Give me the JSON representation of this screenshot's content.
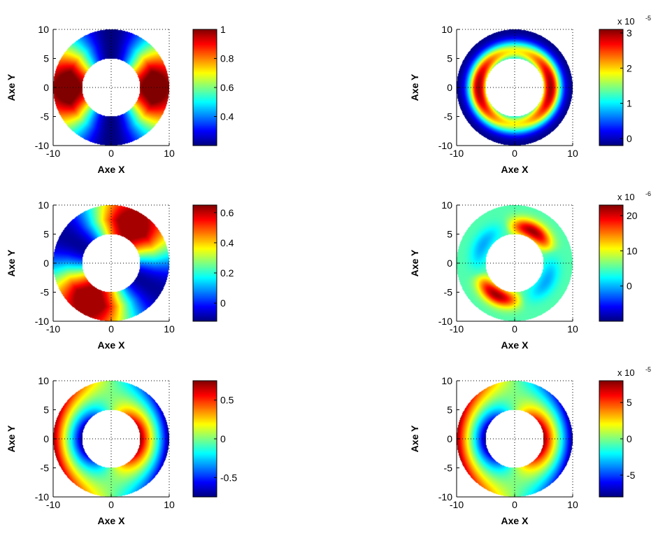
{
  "colormap": "jet",
  "chart_data": [
    {
      "type": "heatmap",
      "xlabel": "Axe X",
      "ylabel": "Axe Y",
      "xlim": [
        -10,
        10
      ],
      "ylim": [
        -10,
        10
      ],
      "xticks": [
        "-10",
        "0",
        "10"
      ],
      "yticks": [
        "10",
        "5",
        "0",
        "-5",
        "-10"
      ],
      "shape": "annulus",
      "inner_radius": 5,
      "outer_radius": 10,
      "colorbar": {
        "min": 0.2,
        "max": 1.0,
        "ticks": [
          "1",
          "0.8",
          "0.6",
          "0.4"
        ],
        "tick_values": [
          1,
          0.8,
          0.6,
          0.4
        ],
        "multiplier": ""
      },
      "field": {
        "kind": "cos2",
        "low": 0.2,
        "high": 1.0,
        "peak_angle_deg": 0,
        "radial_weight": 0.3
      }
    },
    {
      "type": "heatmap",
      "xlabel": "Axe X",
      "ylabel": "Axe Y",
      "xlim": [
        -10,
        10
      ],
      "ylim": [
        -10,
        10
      ],
      "xticks": [
        "-10",
        "0",
        "10"
      ],
      "yticks": [
        "10",
        "5",
        "0",
        "-5",
        "-10"
      ],
      "shape": "annulus",
      "inner_radius": 5,
      "outer_radius": 10,
      "colorbar": {
        "min": -0.2,
        "max": 3.1,
        "ticks": [
          "3",
          "2",
          "1",
          "0"
        ],
        "tick_values": [
          3,
          2,
          1,
          0
        ],
        "multiplier": "x 10",
        "multiplier_exp": "-5"
      },
      "field": {
        "kind": "ring",
        "low": -0.2,
        "high": 3.0,
        "peak_radius": 6.2,
        "ang_amp": 0.35
      }
    },
    {
      "type": "heatmap",
      "xlabel": "Axe X",
      "ylabel": "Axe Y",
      "xlim": [
        -10,
        10
      ],
      "ylim": [
        -10,
        10
      ],
      "xticks": [
        "-10",
        "0",
        "10"
      ],
      "yticks": [
        "10",
        "5",
        "0",
        "-5",
        "-10"
      ],
      "shape": "annulus",
      "inner_radius": 5,
      "outer_radius": 10,
      "colorbar": {
        "min": -0.12,
        "max": 0.65,
        "ticks": [
          "0.6",
          "0.4",
          "0.2",
          "0"
        ],
        "tick_values": [
          0.6,
          0.4,
          0.2,
          0
        ],
        "multiplier": ""
      },
      "field": {
        "kind": "cos2",
        "low": -0.1,
        "high": 0.62,
        "peak_angle_deg": -120,
        "radial_weight": 0.25
      }
    },
    {
      "type": "heatmap",
      "xlabel": "Axe X",
      "ylabel": "Axe Y",
      "xlim": [
        -10,
        10
      ],
      "ylim": [
        -10,
        10
      ],
      "xticks": [
        "-10",
        "0",
        "10"
      ],
      "yticks": [
        "10",
        "5",
        "0",
        "-5",
        "-10"
      ],
      "shape": "annulus",
      "inner_radius": 5,
      "outer_radius": 10,
      "colorbar": {
        "min": -10,
        "max": 23,
        "ticks": [
          "20",
          "10",
          "0"
        ],
        "tick_values": [
          20,
          10,
          0
        ],
        "multiplier": "x 10",
        "multiplier_exp": "-6"
      },
      "field": {
        "kind": "ringcos",
        "low": -4,
        "high": 22,
        "base": 5,
        "peak_radius": 6.3,
        "peak_angle_deg": -120
      }
    },
    {
      "type": "heatmap",
      "xlabel": "Axe X",
      "ylabel": "Axe Y",
      "xlim": [
        -10,
        10
      ],
      "ylim": [
        -10,
        10
      ],
      "xticks": [
        "-10",
        "0",
        "10"
      ],
      "yticks": [
        "10",
        "5",
        "0",
        "-5",
        "-10"
      ],
      "shape": "annulus",
      "inner_radius": 5,
      "outer_radius": 10,
      "colorbar": {
        "min": -0.75,
        "max": 0.75,
        "ticks": [
          "0.5",
          "0",
          "-0.5"
        ],
        "tick_values": [
          0.5,
          0,
          -0.5
        ],
        "multiplier": ""
      },
      "field": {
        "kind": "gradient",
        "low": -0.7,
        "high": 0.7,
        "dir_deg": 0,
        "phase_sign": 1
      }
    },
    {
      "type": "heatmap",
      "xlabel": "Axe X",
      "ylabel": "Axe Y",
      "xlim": [
        -10,
        10
      ],
      "ylim": [
        -10,
        10
      ],
      "xticks": [
        "-10",
        "0",
        "10"
      ],
      "yticks": [
        "10",
        "5",
        "0",
        "-5",
        "-10"
      ],
      "shape": "annulus",
      "inner_radius": 5,
      "outer_radius": 10,
      "colorbar": {
        "min": -8,
        "max": 8,
        "ticks": [
          "5",
          "0",
          "-5"
        ],
        "tick_values": [
          5,
          0,
          -5
        ],
        "multiplier": "x 10",
        "multiplier_exp": "-5"
      },
      "field": {
        "kind": "gradient",
        "low": -7.5,
        "high": 7.5,
        "dir_deg": 0,
        "phase_sign": 1
      }
    }
  ]
}
